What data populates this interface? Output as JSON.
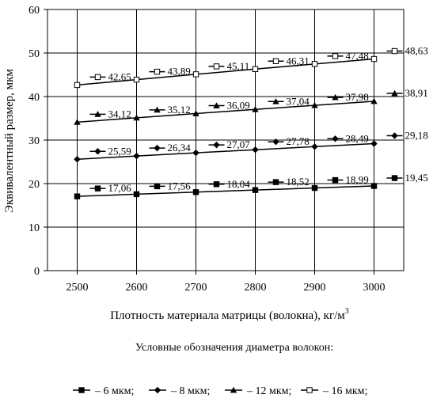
{
  "chart_data": {
    "type": "line",
    "x": [
      2500,
      2600,
      2700,
      2800,
      2900,
      3000
    ],
    "xlim": [
      2450,
      3050
    ],
    "ylim": [
      0,
      60
    ],
    "xticks": [
      "2500",
      "2600",
      "2700",
      "2800",
      "2900",
      "3000"
    ],
    "yticks": [
      "0",
      "10",
      "20",
      "30",
      "40",
      "50",
      "60"
    ],
    "xlabel": "Плотность материала матрицы (волокна), кг/м",
    "xlabel_superscript": "3",
    "ylabel": "Эквивалентный размер, мкм",
    "grid": true,
    "legend_caption": "Условные обозначения диаметра волокон:",
    "legend_position": "bottom",
    "series": [
      {
        "name": "– 6 мкм;",
        "marker": "square",
        "values": [
          17.06,
          17.56,
          18.04,
          18.52,
          18.99,
          19.45
        ],
        "labels": [
          "17,06",
          "17,56",
          "18,04",
          "18,52",
          "18,99",
          "19,45"
        ]
      },
      {
        "name": "– 8 мкм;",
        "marker": "diamond",
        "values": [
          25.59,
          26.34,
          27.07,
          27.78,
          28.49,
          29.18
        ],
        "labels": [
          "25,59",
          "26,34",
          "27,07",
          "27,78",
          "28,49",
          "29,18"
        ]
      },
      {
        "name": "– 12 мкм;",
        "marker": "triangle",
        "values": [
          34.12,
          35.12,
          36.09,
          37.04,
          37.98,
          38.91
        ],
        "labels": [
          "34,12",
          "35,12",
          "36,09",
          "37,04",
          "37,98",
          "38,91"
        ]
      },
      {
        "name": "– 16 мкм;",
        "marker": "square-open",
        "values": [
          42.65,
          43.89,
          45.11,
          46.31,
          47.48,
          48.63
        ],
        "labels": [
          "42,65",
          "43,89",
          "45,11",
          "46,31",
          "47,48",
          "48,63"
        ]
      }
    ]
  }
}
